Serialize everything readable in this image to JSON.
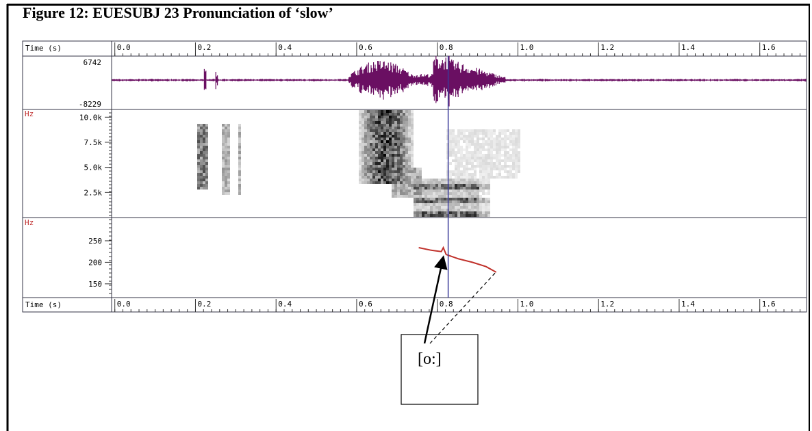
{
  "title": "Figure 12:  EUESUBJ 23 Pronunciation of ‘slow’",
  "annotation": "[o:]",
  "time_axis": {
    "label": "Time (s)",
    "xlim": [
      -0.008,
      1.716
    ],
    "xticks": [
      {
        "value": 0,
        "label": "0.0"
      },
      {
        "value": 0.2,
        "label": "0.2"
      },
      {
        "value": 0.4,
        "label": "0.4"
      },
      {
        "value": 0.6,
        "label": "0.6"
      },
      {
        "value": 0.8,
        "label": "0.8"
      },
      {
        "value": 1.0,
        "label": "1.0"
      },
      {
        "value": 1.2,
        "label": "1.2"
      },
      {
        "value": 1.4,
        "label": "1.4"
      },
      {
        "value": 1.6,
        "label": "1.6"
      }
    ],
    "cursor": 0.827
  },
  "chart_data": [
    {
      "type": "waveform",
      "color": "#6a0f62",
      "ylim": [
        -8229,
        6742
      ],
      "yticks": [
        6742,
        -8229
      ]
    },
    {
      "type": "spectrogram",
      "y_unit": "Hz",
      "ylim": [
        0,
        10770
      ],
      "yticks": [
        {
          "value": 10000,
          "label": "10.0k"
        },
        {
          "value": 7500,
          "label": "7.5k"
        },
        {
          "value": 5000,
          "label": "5.0k"
        },
        {
          "value": 2500,
          "label": "2.5k"
        }
      ]
    },
    {
      "type": "line",
      "y_unit": "Hz",
      "color": "#c0302a",
      "ylim": [
        118,
        304
      ],
      "yticks": [
        250,
        200,
        150
      ],
      "x": [
        0.754,
        0.785,
        0.81,
        0.815,
        0.822,
        0.853,
        0.887,
        0.921,
        0.946
      ],
      "values": [
        234,
        228,
        225,
        234,
        218,
        208,
        200,
        190,
        177
      ]
    }
  ]
}
